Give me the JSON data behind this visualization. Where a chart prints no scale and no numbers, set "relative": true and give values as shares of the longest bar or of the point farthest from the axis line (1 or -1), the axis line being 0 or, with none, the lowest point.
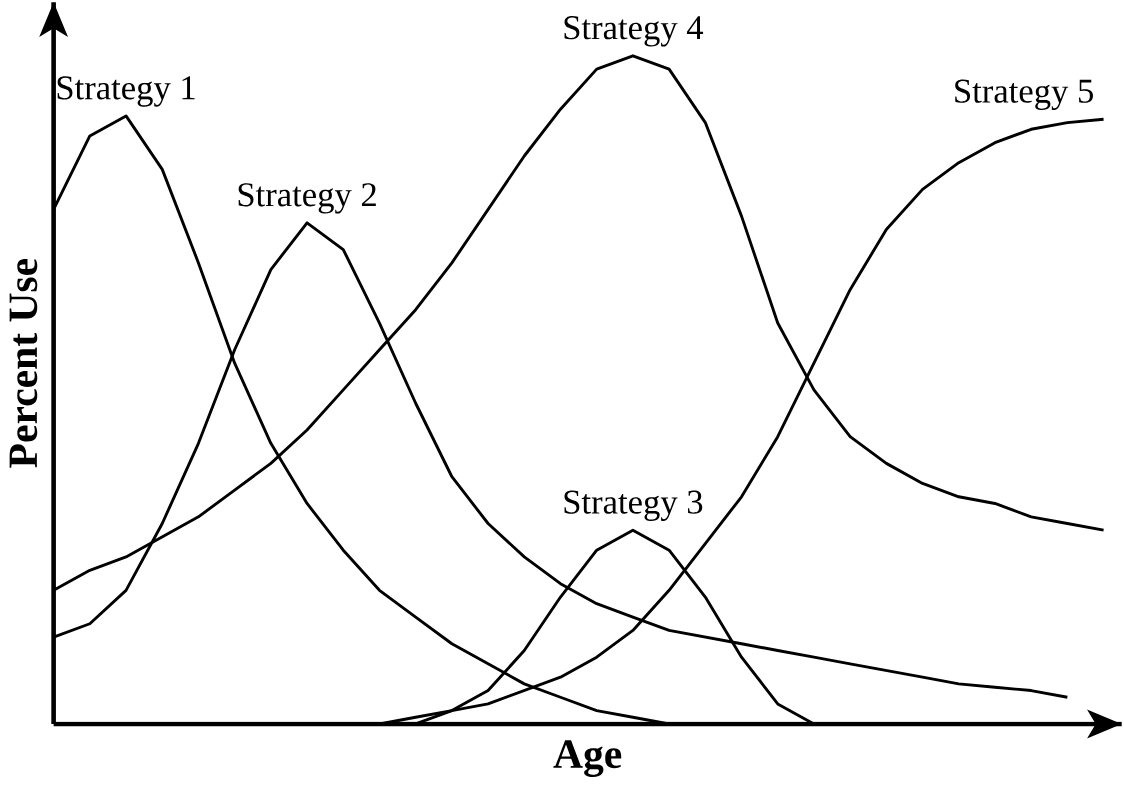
{
  "chart_data": {
    "type": "line",
    "relative": true,
    "xlabel": "Age",
    "ylabel": "Percent Use",
    "marker": "none",
    "line_style": "solid",
    "categories": [
      null,
      null,
      null,
      null,
      null,
      null,
      null,
      null,
      null,
      null,
      null,
      null,
      null,
      null,
      null,
      null,
      null,
      null,
      null,
      null,
      null,
      null,
      null,
      null,
      null,
      null,
      null,
      null,
      null,
      null
    ],
    "series": [
      {
        "name": "Strategy 1",
        "color": "#000000",
        "values": [
          0.77,
          0.88,
          0.91,
          0.83,
          0.69,
          0.54,
          0.42,
          0.33,
          0.26,
          0.2,
          0.16,
          0.12,
          0.09,
          0.06,
          0.04,
          0.02,
          0.01,
          0.0,
          0.0,
          null,
          null,
          null,
          null,
          null,
          null,
          null,
          null,
          null,
          null,
          null
        ]
      },
      {
        "name": "Strategy 2",
        "color": "#000000",
        "values": [
          0.13,
          0.15,
          0.2,
          0.3,
          0.42,
          0.56,
          0.68,
          0.75,
          0.71,
          0.6,
          0.48,
          0.37,
          0.3,
          0.25,
          0.21,
          0.18,
          0.16,
          0.14,
          0.13,
          0.12,
          0.11,
          0.1,
          0.09,
          0.08,
          0.07,
          0.06,
          0.055,
          0.05,
          0.04,
          null
        ]
      },
      {
        "name": "Strategy 3",
        "color": "#000000",
        "values": [
          null,
          null,
          null,
          null,
          null,
          null,
          null,
          null,
          null,
          null,
          0.0,
          0.02,
          0.05,
          0.11,
          0.19,
          0.26,
          0.29,
          0.26,
          0.19,
          0.1,
          0.03,
          0.0,
          null,
          null,
          null,
          null,
          null,
          null,
          null,
          null
        ]
      },
      {
        "name": "Strategy 4",
        "color": "#000000",
        "values": [
          0.2,
          0.23,
          0.25,
          0.28,
          0.31,
          0.35,
          0.39,
          0.44,
          0.5,
          0.56,
          0.62,
          0.69,
          0.77,
          0.85,
          0.92,
          0.98,
          1.0,
          0.98,
          0.9,
          0.76,
          0.6,
          0.5,
          0.43,
          0.39,
          0.36,
          0.34,
          0.33,
          0.31,
          0.3,
          0.29
        ]
      },
      {
        "name": "Strategy 5",
        "color": "#000000",
        "values": [
          null,
          null,
          null,
          null,
          null,
          null,
          null,
          null,
          0.0,
          0.0,
          0.01,
          0.02,
          0.03,
          0.05,
          0.07,
          0.1,
          0.14,
          0.2,
          0.27,
          0.34,
          0.43,
          0.54,
          0.65,
          0.74,
          0.8,
          0.84,
          0.87,
          0.89,
          0.9,
          0.905
        ]
      }
    ]
  }
}
